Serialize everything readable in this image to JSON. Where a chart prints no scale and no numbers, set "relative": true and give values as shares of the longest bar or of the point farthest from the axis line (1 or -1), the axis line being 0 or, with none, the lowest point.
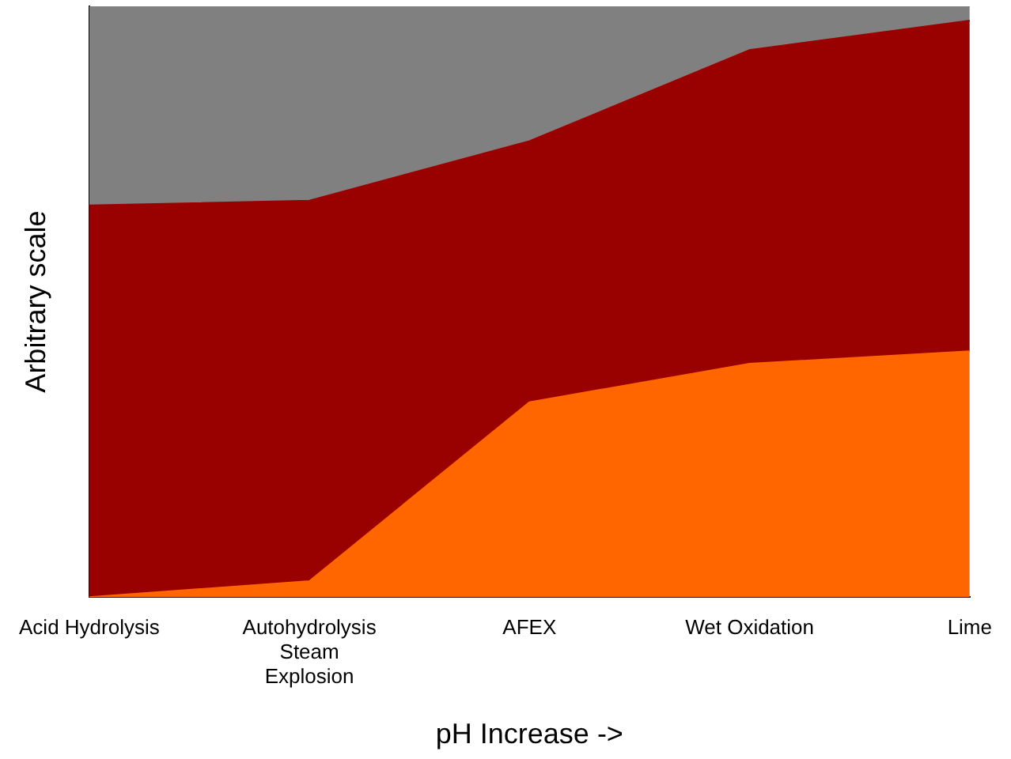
{
  "chart_data": {
    "type": "area",
    "stacked": true,
    "relative": true,
    "xlabel": "pH Increase ->",
    "ylabel": "Arbitrary scale",
    "categories": [
      "Acid Hydrolysis",
      "Autohydrolysis Steam Explosion",
      "AFEX",
      "Wet Oxidation",
      "Lime"
    ],
    "series": [
      {
        "color": "#ff6600",
        "values": [
          0,
          0.027,
          0.33,
          0.395,
          0.416
        ]
      },
      {
        "color": "#990000",
        "values": [
          0.663,
          0.644,
          0.442,
          0.531,
          0.56
        ]
      },
      {
        "color": "#808080",
        "values": [
          0.337,
          0.329,
          0.228,
          0.074,
          0.024
        ]
      }
    ],
    "grid": false,
    "legend": false
  }
}
